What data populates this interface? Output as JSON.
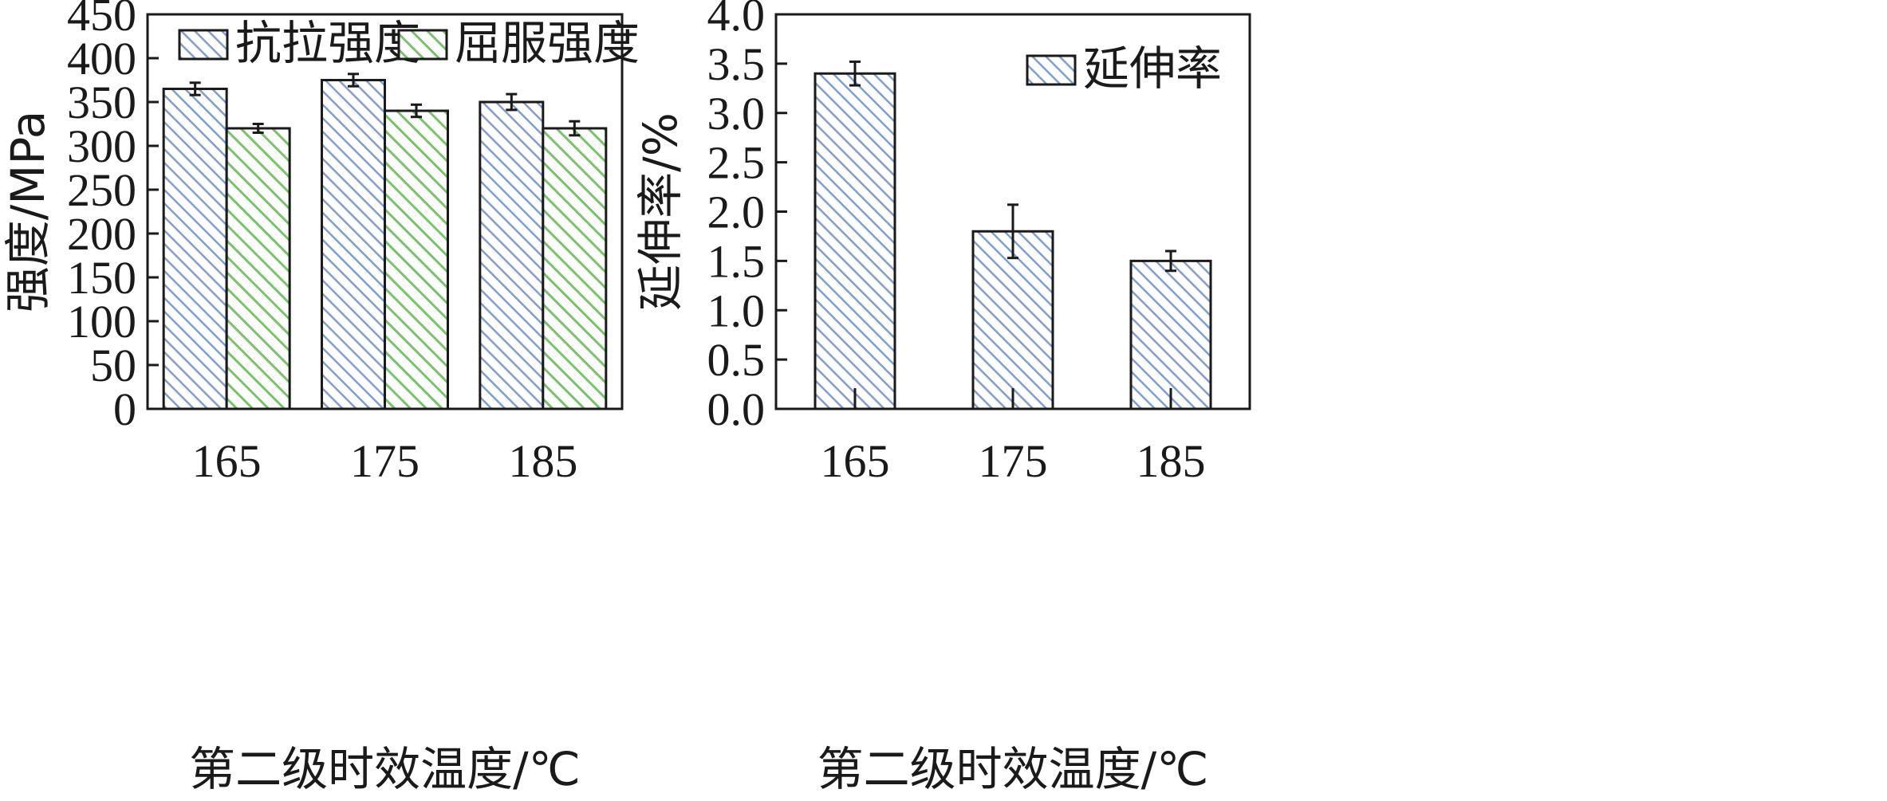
{
  "chart_data": [
    {
      "type": "bar",
      "categories": [
        "165",
        "175",
        "185"
      ],
      "series": [
        {
          "name": "抗拉强度",
          "values": [
            365,
            375,
            350
          ],
          "errors": [
            7,
            7,
            9
          ],
          "color": "#7f9fd0"
        },
        {
          "name": "屈服强度",
          "values": [
            320,
            340,
            320
          ],
          "errors": [
            5,
            7,
            8
          ],
          "color": "#79c36a"
        }
      ],
      "title": "",
      "xlabel": "第二级时效温度/℃",
      "ylabel": "强度/MPa",
      "ylim": [
        0,
        450
      ],
      "yticks": [
        "0",
        "50",
        "100",
        "150",
        "200",
        "250",
        "300",
        "350",
        "400",
        "450"
      ],
      "legend_position": "top",
      "grid": false
    },
    {
      "type": "bar",
      "categories": [
        "165",
        "175",
        "185"
      ],
      "series": [
        {
          "name": "延伸率",
          "values": [
            3.4,
            1.8,
            1.5
          ],
          "errors": [
            0.12,
            0.27,
            0.1
          ],
          "color": "#7f9fd0"
        }
      ],
      "title": "",
      "xlabel": "第二级时效温度/℃",
      "ylabel": "延伸率/%",
      "ylim": [
        0,
        4.0
      ],
      "yticks": [
        "0.0",
        "0.5",
        "1.0",
        "1.5",
        "2.0",
        "2.5",
        "3.0",
        "3.5",
        "4.0"
      ],
      "legend_position": "top-right",
      "grid": false
    }
  ]
}
